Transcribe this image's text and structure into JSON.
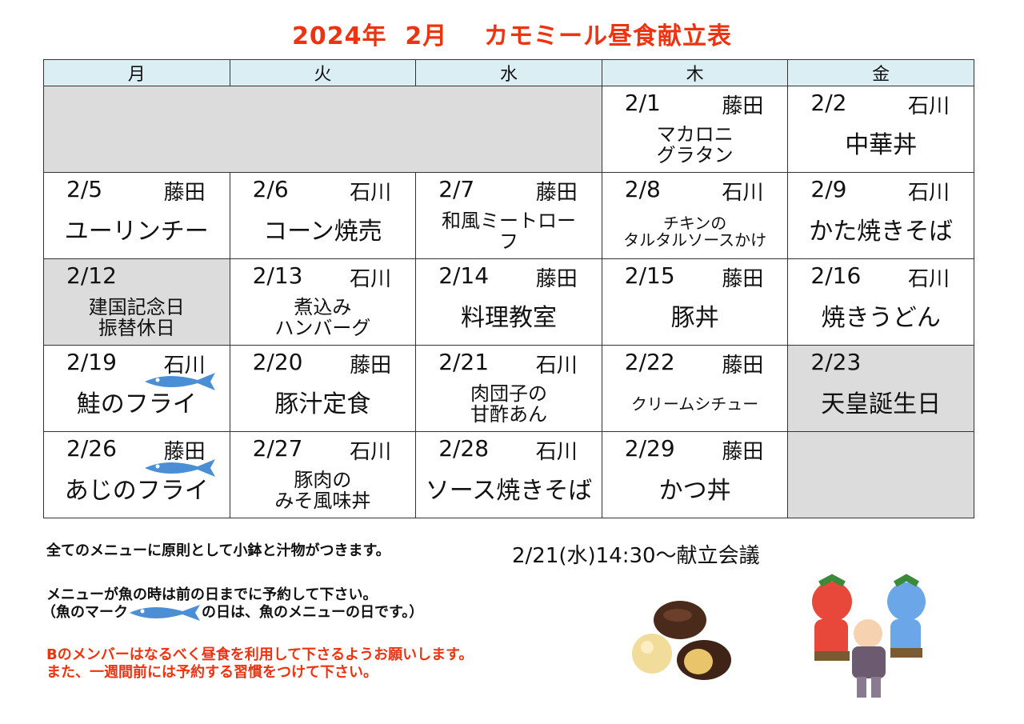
{
  "title": "2024年  2月    カモミール昼食献立表",
  "weekdays": [
    "月",
    "火",
    "水",
    "木",
    "金"
  ],
  "weeks": [
    [
      {
        "date": "2/1",
        "staff": "藤田",
        "menu": "マカロニ\nグラタン",
        "size": "two"
      },
      {
        "date": "2/2",
        "staff": "石川",
        "menu": "中華丼"
      }
    ],
    [
      {
        "date": "2/5",
        "staff": "藤田",
        "menu": "ユーリンチー"
      },
      {
        "date": "2/6",
        "staff": "石川",
        "menu": "コーン焼売"
      },
      {
        "date": "2/7",
        "staff": "藤田",
        "menu": "和風ミートロー\nフ",
        "size": "two"
      },
      {
        "date": "2/8",
        "staff": "石川",
        "menu": "チキンの\nタルタルソースかけ",
        "size": "small"
      },
      {
        "date": "2/9",
        "staff": "石川",
        "menu": "かた焼きそば"
      }
    ],
    [
      {
        "date": "2/12",
        "staff": "",
        "menu": "建国記念日\n振替休日",
        "size": "two",
        "gray": true
      },
      {
        "date": "2/13",
        "staff": "石川",
        "menu": "煮込み\nハンバーグ",
        "size": "two"
      },
      {
        "date": "2/14",
        "staff": "藤田",
        "menu": "料理教室"
      },
      {
        "date": "2/15",
        "staff": "藤田",
        "menu": "豚丼"
      },
      {
        "date": "2/16",
        "staff": "石川",
        "menu": "焼きうどん"
      }
    ],
    [
      {
        "date": "2/19",
        "staff": "石川",
        "menu": "鮭のフライ",
        "fish": true
      },
      {
        "date": "2/20",
        "staff": "藤田",
        "menu": "豚汁定食"
      },
      {
        "date": "2/21",
        "staff": "石川",
        "menu": "肉団子の\n甘酢あん",
        "size": "two"
      },
      {
        "date": "2/22",
        "staff": "藤田",
        "menu": "クリームシチュー",
        "size": "small"
      },
      {
        "date": "2/23",
        "staff": "",
        "menu": "天皇誕生日",
        "gray": true
      }
    ],
    [
      {
        "date": "2/26",
        "staff": "藤田",
        "menu": "あじのフライ",
        "fish": true
      },
      {
        "date": "2/27",
        "staff": "石川",
        "menu": "豚肉の\nみそ風味丼",
        "size": "two"
      },
      {
        "date": "2/28",
        "staff": "石川",
        "menu": "ソース焼きそば"
      },
      {
        "date": "2/29",
        "staff": "藤田",
        "menu": "かつ丼"
      }
    ]
  ],
  "notes": {
    "line1": "全てのメニューに原則として小鉢と汁物がつきます。",
    "line2": "メニューが魚の時は前の日までに予約して下さい。",
    "line3a": "（魚のマーク",
    "line3b": "の日は、魚のメニューの日です。）",
    "line4": "Bのメンバーはなるべく昼食を利用して下さるようお願いします。",
    "line5": "また、一週間前には予約する習慣をつけて下さい。"
  },
  "meeting": "2/21(水)14:30～献立会議",
  "colors": {
    "title": "#ee3311",
    "header_bg": "#dbeef3",
    "holiday_bg": "#dcdcdc",
    "fish": "#4a8fd6"
  },
  "illustrations": [
    "chocolate-sweets",
    "oni-setsubun"
  ]
}
